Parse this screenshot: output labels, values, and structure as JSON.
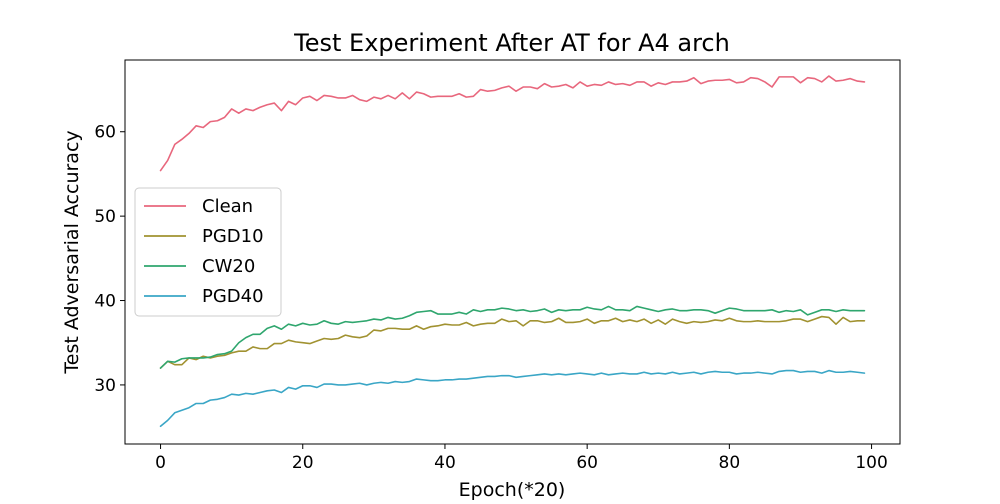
{
  "chart_data": {
    "type": "line",
    "title": "Test Experiment After AT for A4 arch",
    "xlabel": "Epoch(*20)",
    "ylabel": "Test Adversarial Accuracy",
    "xlim": [
      -5,
      104
    ],
    "ylim": [
      23,
      68.5
    ],
    "xticks": [
      0,
      20,
      40,
      60,
      80,
      100
    ],
    "yticks": [
      30,
      40,
      50,
      60
    ],
    "grid": false,
    "legend_position": "center-left",
    "series": [
      {
        "name": "Clean",
        "color": "#e8677d",
        "values": [
          55.4,
          56.6,
          58.5,
          59.1,
          59.8,
          60.7,
          60.5,
          61.2,
          61.3,
          61.7,
          62.7,
          62.2,
          62.7,
          62.5,
          62.9,
          63.2,
          63.4,
          62.5,
          63.6,
          63.2,
          64.0,
          64.2,
          63.7,
          64.3,
          64.2,
          64.0,
          64.0,
          64.3,
          63.8,
          63.6,
          64.1,
          63.9,
          64.3,
          63.9,
          64.6,
          63.9,
          64.7,
          64.5,
          64.1,
          64.2,
          64.2,
          64.2,
          64.5,
          64.1,
          64.2,
          65.0,
          64.8,
          64.9,
          65.2,
          65.4,
          64.8,
          65.3,
          65.3,
          65.1,
          65.7,
          65.3,
          65.4,
          65.6,
          65.2,
          65.9,
          65.4,
          65.6,
          65.5,
          65.9,
          65.6,
          65.7,
          65.5,
          65.9,
          65.9,
          65.4,
          65.8,
          65.6,
          65.9,
          65.9,
          66.0,
          66.4,
          65.7,
          66.0,
          66.1,
          66.1,
          66.2,
          65.8,
          65.9,
          66.4,
          66.3,
          65.9,
          65.3,
          66.5,
          66.5,
          66.5,
          65.8,
          66.4,
          66.3,
          65.9,
          66.6,
          66.0,
          66.1,
          66.3,
          66.0,
          65.9
        ]
      },
      {
        "name": "PGD10",
        "color": "#a19231",
        "values": [
          32.0,
          32.8,
          32.4,
          32.4,
          33.2,
          33.0,
          33.4,
          33.2,
          33.4,
          33.5,
          33.8,
          34.0,
          34.0,
          34.5,
          34.3,
          34.3,
          34.9,
          34.9,
          35.3,
          35.1,
          35.0,
          34.9,
          35.2,
          35.5,
          35.4,
          35.5,
          35.9,
          35.7,
          35.6,
          35.8,
          36.5,
          36.4,
          36.7,
          36.7,
          36.6,
          36.6,
          37.0,
          36.6,
          36.9,
          37.0,
          37.2,
          37.1,
          37.1,
          37.4,
          37.0,
          37.2,
          37.3,
          37.3,
          37.8,
          37.5,
          37.6,
          37.0,
          37.6,
          37.6,
          37.4,
          37.5,
          37.9,
          37.4,
          37.4,
          37.5,
          37.8,
          37.3,
          37.6,
          37.6,
          37.9,
          37.5,
          37.7,
          37.5,
          37.8,
          37.3,
          37.7,
          37.2,
          37.8,
          37.5,
          37.3,
          37.5,
          37.4,
          37.5,
          37.7,
          37.6,
          37.9,
          37.6,
          37.5,
          37.5,
          37.6,
          37.5,
          37.5,
          37.5,
          37.6,
          37.8,
          37.8,
          37.5,
          37.8,
          38.1,
          38.0,
          37.2,
          38.0,
          37.5,
          37.6,
          37.6
        ]
      },
      {
        "name": "CW20",
        "color": "#2fa66e",
        "values": [
          32.0,
          32.8,
          32.7,
          33.1,
          33.2,
          33.2,
          33.2,
          33.3,
          33.6,
          33.7,
          34.0,
          35.0,
          35.6,
          36.0,
          36.0,
          36.7,
          37.0,
          36.6,
          37.2,
          37.0,
          37.3,
          37.1,
          37.2,
          37.6,
          37.3,
          37.2,
          37.5,
          37.4,
          37.5,
          37.6,
          37.8,
          37.7,
          38.0,
          37.8,
          37.9,
          38.2,
          38.6,
          38.7,
          38.8,
          38.4,
          38.4,
          38.4,
          38.6,
          38.4,
          38.9,
          38.7,
          38.9,
          38.9,
          39.1,
          39.0,
          38.8,
          38.9,
          38.7,
          38.8,
          39.0,
          38.6,
          38.9,
          38.8,
          38.9,
          38.9,
          39.2,
          39.0,
          38.9,
          39.3,
          38.9,
          38.9,
          38.8,
          39.3,
          39.1,
          38.9,
          38.7,
          38.9,
          39.0,
          38.8,
          38.8,
          38.9,
          38.9,
          38.8,
          38.5,
          38.8,
          39.1,
          39.0,
          38.8,
          38.8,
          38.8,
          38.8,
          38.9,
          38.6,
          38.8,
          38.7,
          38.9,
          38.3,
          38.6,
          38.9,
          38.9,
          38.7,
          38.9,
          38.8,
          38.8,
          38.8
        ]
      },
      {
        "name": "PGD40",
        "color": "#3aa6c6",
        "values": [
          25.1,
          25.8,
          26.7,
          27.0,
          27.3,
          27.8,
          27.8,
          28.2,
          28.3,
          28.5,
          28.9,
          28.8,
          29.0,
          28.9,
          29.1,
          29.3,
          29.4,
          29.1,
          29.7,
          29.5,
          29.9,
          29.9,
          29.7,
          30.1,
          30.1,
          30.0,
          30.0,
          30.1,
          30.2,
          30.0,
          30.2,
          30.3,
          30.2,
          30.4,
          30.3,
          30.4,
          30.7,
          30.6,
          30.5,
          30.5,
          30.6,
          30.6,
          30.7,
          30.7,
          30.8,
          30.9,
          31.0,
          31.0,
          31.1,
          31.1,
          30.9,
          31.0,
          31.1,
          31.2,
          31.3,
          31.2,
          31.3,
          31.2,
          31.3,
          31.4,
          31.3,
          31.2,
          31.4,
          31.2,
          31.3,
          31.4,
          31.3,
          31.3,
          31.5,
          31.3,
          31.4,
          31.3,
          31.5,
          31.3,
          31.4,
          31.5,
          31.3,
          31.5,
          31.6,
          31.5,
          31.5,
          31.3,
          31.4,
          31.4,
          31.5,
          31.4,
          31.3,
          31.6,
          31.7,
          31.7,
          31.5,
          31.6,
          31.6,
          31.4,
          31.7,
          31.5,
          31.5,
          31.6,
          31.5,
          31.4
        ]
      }
    ]
  }
}
